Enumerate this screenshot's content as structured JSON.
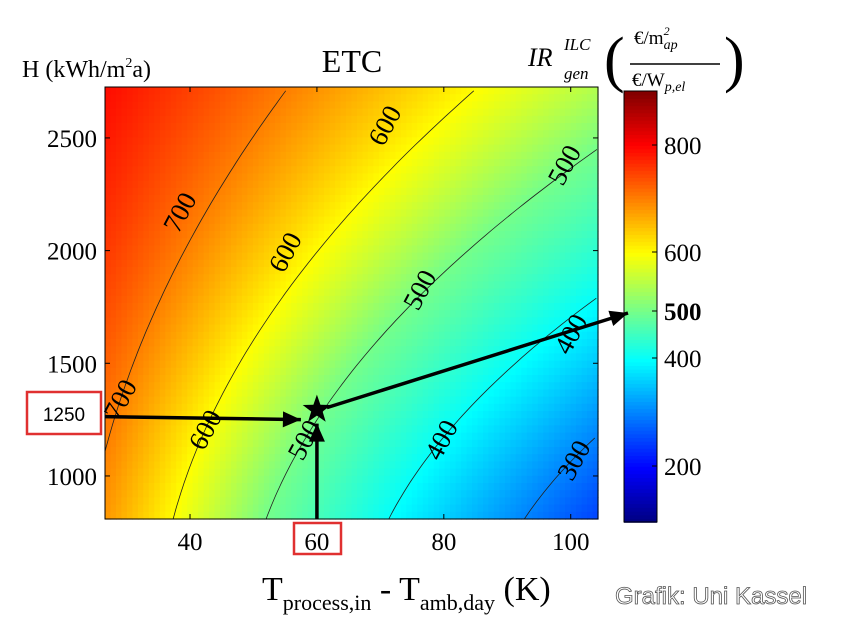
{
  "chart_data": {
    "type": "heatmap",
    "subtype": "filled-contour",
    "title": "ETC",
    "xlabel": {
      "main": "T",
      "sub1": "process,in",
      "mid": " - T",
      "sub2": "amb,day",
      "unit": " (K)"
    },
    "ylabel": {
      "main": "H (kWh/m",
      "sup": "2",
      "tail": "a)"
    },
    "colorbar_label": {
      "base": "IR",
      "sup": "ILC",
      "sub": "gen",
      "num": "€/m",
      "num_sup": "2",
      "num_sub": "ap",
      "den": "€/W",
      "den_sub": "p,el"
    },
    "xlim": [
      26.6,
      104.3
    ],
    "ylim": [
      809,
      2726
    ],
    "xticks": [
      "40",
      "60",
      "80",
      "100"
    ],
    "yticks": [
      "1000",
      "1500",
      "2000",
      "2500"
    ],
    "colorbar_range": [
      100,
      900
    ],
    "colorbar_ticks": [
      "200",
      "400",
      "500",
      "600",
      "800"
    ],
    "colorbar_highlight": "500",
    "colormap": "jet",
    "grid": false,
    "contour_levels": [
      300,
      400,
      500,
      600,
      700
    ],
    "contour_labels": [
      {
        "text": "700",
        "x": 29,
        "y": 1340
      },
      {
        "text": "700",
        "x": 38.4,
        "y": 2170
      },
      {
        "text": "600",
        "x": 42.4,
        "y": 1205
      },
      {
        "text": "600",
        "x": 55,
        "y": 1993
      },
      {
        "text": "600",
        "x": 70.7,
        "y": 2555
      },
      {
        "text": "500",
        "x": 58,
        "y": 1160
      },
      {
        "text": "500",
        "x": 76.2,
        "y": 1826
      },
      {
        "text": "500",
        "x": 99,
        "y": 2380
      },
      {
        "text": "400",
        "x": 79.6,
        "y": 1160
      },
      {
        "text": "400",
        "x": 100,
        "y": 1630
      },
      {
        "text": "300",
        "x": 100.5,
        "y": 1070
      }
    ],
    "marked_point": {
      "x": 60,
      "y": 1250,
      "value": 500
    },
    "highlighted_x": "60",
    "highlighted_y": "1250"
  },
  "watermark": "Grafik: Uni Kassel"
}
